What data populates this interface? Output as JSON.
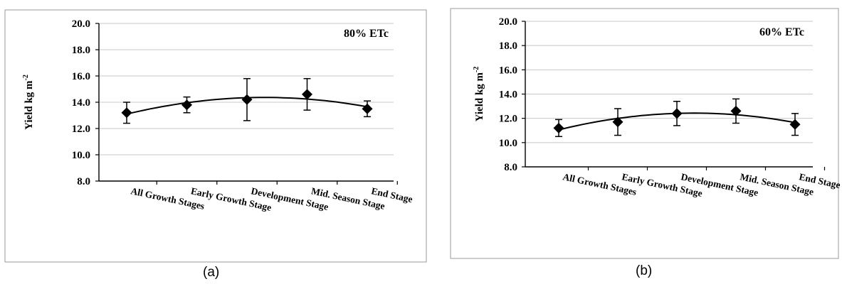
{
  "chart_data": [
    {
      "type": "line",
      "panel": "(a)",
      "annotation": "80% ETc",
      "ylabel": "Yield kg m",
      "ylabel_superscript": "-2",
      "categories": [
        "All Growth Stages",
        "Early Growth Stage",
        "Development Stage",
        "Mid. Season Stage",
        "End Stage"
      ],
      "values": [
        13.2,
        13.8,
        14.2,
        14.6,
        13.5
      ],
      "error": [
        0.8,
        0.6,
        1.6,
        1.2,
        0.6
      ],
      "ylim": [
        8.0,
        20.0
      ],
      "yticks": [
        "8.0",
        "10.0",
        "12.0",
        "14.0",
        "16.0",
        "18.0",
        "20.0"
      ],
      "trendline": "polynomial",
      "grid": true
    },
    {
      "type": "line",
      "panel": "(b)",
      "annotation": "60% ETc",
      "ylabel": "Yield kg m",
      "ylabel_superscript": "-2",
      "categories": [
        "All Growth Stages",
        "Early Growth Stage",
        "Development Stage",
        "Mid. Season Stage",
        "End Stage"
      ],
      "values": [
        11.2,
        11.7,
        12.4,
        12.6,
        11.5
      ],
      "error": [
        0.7,
        1.1,
        1.0,
        1.0,
        0.9
      ],
      "ylim": [
        8.0,
        20.0
      ],
      "yticks": [
        "8.0",
        "10.0",
        "12.0",
        "14.0",
        "16.0",
        "18.0",
        "20.0"
      ],
      "trendline": "polynomial",
      "grid": true
    }
  ]
}
